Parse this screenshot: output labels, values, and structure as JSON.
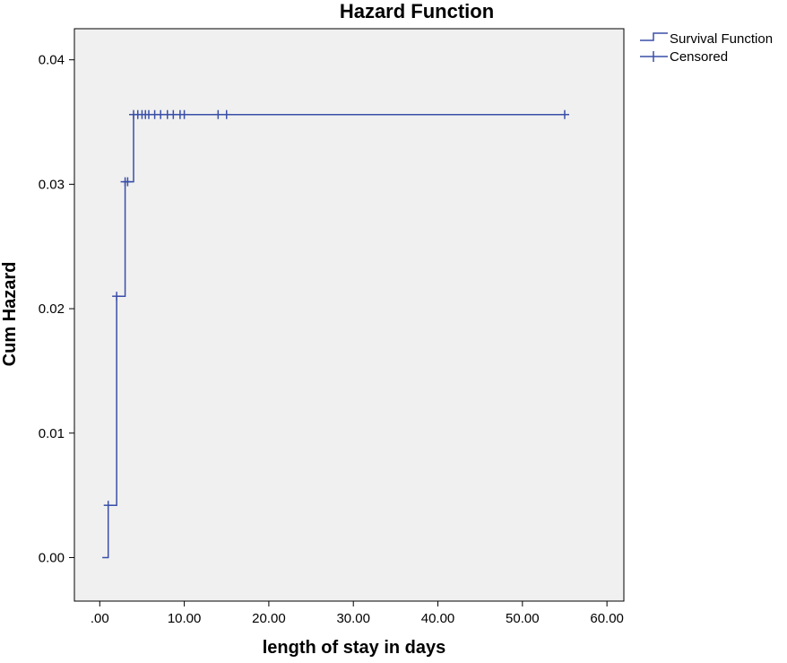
{
  "chart_data": {
    "type": "line",
    "step": true,
    "title": "Hazard Function",
    "xlabel": "length of stay in days",
    "ylabel": "Cum Hazard",
    "xlim": [
      -3,
      62
    ],
    "ylim": [
      -0.0035,
      0.0425
    ],
    "xticks": [
      0,
      10,
      20,
      30,
      40,
      50,
      60
    ],
    "xtick_labels": [
      ".00",
      "10.00",
      "20.00",
      "30.00",
      "40.00",
      "50.00",
      "60.00"
    ],
    "yticks": [
      0.0,
      0.01,
      0.02,
      0.03,
      0.04
    ],
    "ytick_labels": [
      "0.00",
      "0.01",
      "0.02",
      "0.03",
      "0.04"
    ],
    "grid": false,
    "legend_position": "top-right",
    "series": [
      {
        "name": "Survival Function",
        "color": "#3a4fa8",
        "marker": "step",
        "x": [
          0.3,
          1,
          2,
          3,
          4,
          55
        ],
        "y": [
          0.0,
          0.0042,
          0.021,
          0.0302,
          0.0356,
          0.0356
        ]
      },
      {
        "name": "Censored",
        "color": "#3a4fa8",
        "marker": "+",
        "x": [
          1,
          2,
          3,
          3.3,
          4,
          4.5,
          5,
          5.4,
          5.8,
          6.5,
          7.2,
          8,
          8.7,
          9.5,
          10,
          14,
          15,
          55
        ],
        "y": [
          0.0042,
          0.021,
          0.0302,
          0.0302,
          0.0356,
          0.0356,
          0.0356,
          0.0356,
          0.0356,
          0.0356,
          0.0356,
          0.0356,
          0.0356,
          0.0356,
          0.0356,
          0.0356,
          0.0356,
          0.0356
        ]
      }
    ]
  }
}
